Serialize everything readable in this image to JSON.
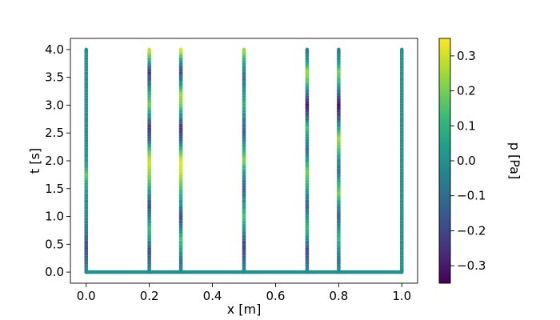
{
  "chart_data": {
    "type": "scatter",
    "title": "",
    "xlabel": "x [m]",
    "ylabel": "t [s]",
    "xlim": [
      -0.05,
      1.05
    ],
    "ylim": [
      -0.2,
      4.2
    ],
    "xticks": [
      "0.0",
      "0.2",
      "0.4",
      "0.6",
      "0.8",
      "1.0"
    ],
    "yticks": [
      "0.0",
      "0.5",
      "1.0",
      "1.5",
      "2.0",
      "2.5",
      "3.0",
      "3.5",
      "4.0"
    ],
    "grid": false,
    "baseline": {
      "t": 0.0,
      "x_start": 0.0,
      "x_end": 1.0,
      "p": 0.0
    },
    "colorbar": {
      "label": "p [Pa]",
      "range": [
        -0.35,
        0.35
      ],
      "ticks": [
        "−0.3",
        "−0.2",
        "−0.1",
        "0.0",
        "0.1",
        "0.2",
        "0.3"
      ],
      "colormap": "viridis"
    },
    "series": [
      {
        "x": 0.0,
        "t_range": [
          0.0,
          4.0
        ],
        "pressure_t": [
          0.0,
          0.25,
          0.45,
          0.7,
          1.0,
          1.3,
          1.6,
          1.75,
          1.9,
          2.2,
          2.5,
          2.9,
          3.3,
          3.7,
          4.0
        ],
        "pressure": [
          0.0,
          -0.12,
          -0.2,
          -0.08,
          0.0,
          0.0,
          0.08,
          0.18,
          0.06,
          0.0,
          0.0,
          0.0,
          0.0,
          0.0,
          0.0
        ]
      },
      {
        "x": 0.2,
        "t_range": [
          0.0,
          4.0
        ],
        "pressure_t": [
          0.0,
          0.2,
          0.4,
          0.6,
          0.8,
          1.0,
          1.2,
          1.4,
          1.6,
          1.8,
          2.0,
          2.2,
          2.4,
          2.6,
          2.8,
          3.0,
          3.2,
          3.4,
          3.6,
          3.8,
          4.0
        ],
        "pressure": [
          0.0,
          -0.1,
          -0.2,
          0.05,
          0.12,
          -0.05,
          -0.2,
          0.0,
          0.15,
          0.25,
          0.3,
          0.15,
          -0.15,
          -0.25,
          0.0,
          0.2,
          0.1,
          -0.1,
          -0.25,
          0.1,
          0.3
        ]
      },
      {
        "x": 0.3,
        "t_range": [
          0.0,
          4.0
        ],
        "pressure_t": [
          0.0,
          0.2,
          0.4,
          0.6,
          0.8,
          1.0,
          1.2,
          1.4,
          1.6,
          1.8,
          2.0,
          2.2,
          2.4,
          2.6,
          2.8,
          3.0,
          3.2,
          3.4,
          3.6,
          3.8,
          4.0
        ],
        "pressure": [
          0.0,
          -0.1,
          0.05,
          0.15,
          -0.05,
          -0.2,
          0.0,
          0.1,
          0.2,
          0.3,
          0.32,
          0.12,
          -0.15,
          -0.25,
          0.0,
          0.2,
          0.25,
          0.0,
          -0.2,
          0.05,
          0.33
        ]
      },
      {
        "x": 0.5,
        "t_range": [
          0.0,
          4.0
        ],
        "pressure_t": [
          0.0,
          0.25,
          0.5,
          0.75,
          1.0,
          1.25,
          1.5,
          1.75,
          2.0,
          2.25,
          2.5,
          2.75,
          3.0,
          3.25,
          3.5,
          3.75,
          4.0
        ],
        "pressure": [
          0.0,
          -0.15,
          -0.22,
          0.0,
          0.15,
          0.0,
          -0.15,
          0.0,
          0.22,
          0.05,
          -0.15,
          -0.05,
          0.1,
          0.0,
          -0.1,
          0.05,
          0.25
        ]
      },
      {
        "x": 0.7,
        "t_range": [
          0.0,
          4.0
        ],
        "pressure_t": [
          0.0,
          0.2,
          0.4,
          0.6,
          0.8,
          1.0,
          1.2,
          1.4,
          1.6,
          1.8,
          2.0,
          2.2,
          2.4,
          2.6,
          2.8,
          3.0,
          3.2,
          3.4,
          3.6,
          3.8,
          4.0
        ],
        "pressure": [
          0.0,
          -0.12,
          -0.2,
          0.0,
          0.12,
          0.0,
          -0.15,
          0.0,
          0.12,
          0.2,
          0.05,
          -0.1,
          0.0,
          0.15,
          -0.15,
          -0.33,
          -0.1,
          0.15,
          0.25,
          0.0,
          -0.05
        ]
      },
      {
        "x": 0.8,
        "t_range": [
          0.0,
          4.0
        ],
        "pressure_t": [
          0.0,
          0.2,
          0.4,
          0.6,
          0.8,
          1.0,
          1.2,
          1.4,
          1.6,
          1.8,
          2.0,
          2.2,
          2.4,
          2.6,
          2.8,
          3.0,
          3.2,
          3.4,
          3.6,
          3.8,
          4.0
        ],
        "pressure": [
          0.0,
          -0.1,
          0.0,
          0.12,
          0.0,
          -0.15,
          0.0,
          0.2,
          0.1,
          -0.1,
          0.0,
          0.15,
          0.25,
          0.05,
          -0.2,
          -0.33,
          -0.15,
          0.1,
          0.2,
          0.0,
          -0.05
        ]
      },
      {
        "x": 1.0,
        "t_range": [
          0.0,
          4.0
        ],
        "pressure_t": [
          0.0,
          4.0
        ],
        "pressure": [
          0.0,
          0.0
        ]
      }
    ]
  }
}
